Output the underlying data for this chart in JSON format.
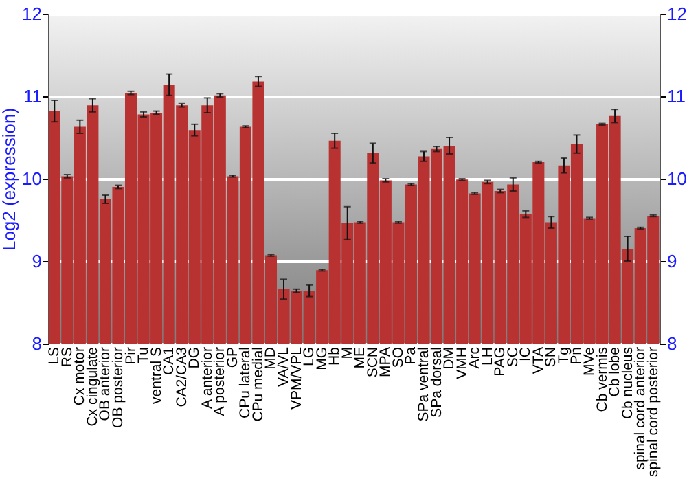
{
  "chart_data": {
    "type": "bar",
    "ylabel": "Log2 (expression)",
    "categories": [
      "LS",
      "RS",
      "Cx motor",
      "Cx cingulate",
      "OB anterior",
      "OB posterior",
      "Pir",
      "Tu",
      "ventral S",
      "CA1",
      "CA2/CA3",
      "DG",
      "A anterior",
      "A posterior",
      "GP",
      "CPu lateral",
      "CPu medial",
      "MD",
      "VA/VL",
      "VPM/VPL",
      "LG",
      "MG",
      "Hb",
      "M",
      "ME",
      "SCN",
      "MPA",
      "SO",
      "Pa",
      "SPa ventral",
      "SPa dorsal",
      "DM",
      "VMH",
      "Arc",
      "LH",
      "PAG",
      "SC",
      "IC",
      "VTA",
      "SN",
      "Tg",
      "Pn",
      "MVe",
      "Cb vermis",
      "Cb lobe",
      "Cb nucleus",
      "spinal cord anterior",
      "spinal cord posterior"
    ],
    "series": [
      {
        "color": "#b83232",
        "values": [
          10.82,
          10.03,
          10.63,
          10.89,
          9.75,
          9.9,
          11.04,
          10.78,
          10.8,
          11.14,
          10.89,
          10.59,
          10.89,
          11.01,
          10.03,
          10.63,
          11.18,
          9.07,
          8.66,
          8.64,
          8.64,
          8.89,
          10.46,
          9.46,
          9.47,
          10.31,
          9.98,
          9.47,
          9.93,
          10.27,
          10.36,
          10.4,
          9.99,
          9.82,
          9.96,
          9.85,
          9.93,
          9.57,
          10.2,
          9.47,
          10.16,
          10.42,
          9.52,
          10.66,
          10.76,
          9.15,
          9.4,
          9.55
        ],
        "errors": [
          0.13,
          0.02,
          0.08,
          0.08,
          0.05,
          0.02,
          0.02,
          0.03,
          0.02,
          0.13,
          0.02,
          0.07,
          0.09,
          0.02,
          0.01,
          0.01,
          0.06,
          0.01,
          0.12,
          0.02,
          0.07,
          0.01,
          0.09,
          0.2,
          0.01,
          0.12,
          0.02,
          0.01,
          0.01,
          0.06,
          0.03,
          0.1,
          0.01,
          0.01,
          0.02,
          0.02,
          0.08,
          0.04,
          0.01,
          0.07,
          0.09,
          0.11,
          0.01,
          0.01,
          0.08,
          0.15,
          0.01,
          0.01
        ]
      }
    ],
    "ylim": [
      8,
      12
    ],
    "yticks": [
      8,
      9,
      10,
      11,
      12
    ],
    "y2lim": [
      8,
      12
    ],
    "y2ticks": [
      8,
      9,
      10,
      11,
      12
    ],
    "grid": "y"
  }
}
